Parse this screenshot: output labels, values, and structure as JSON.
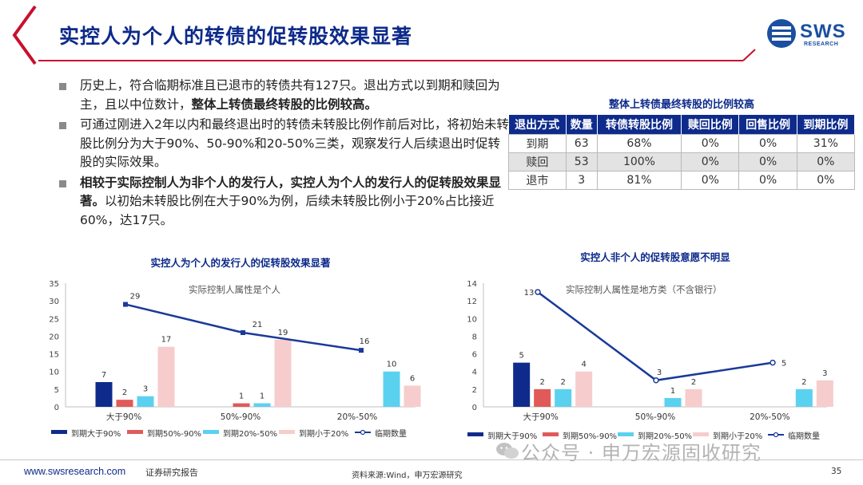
{
  "header": {
    "title": "实控人为个人的转债的促转股效果显著",
    "logo_text": "SWS",
    "logo_sub": "RESEARCH"
  },
  "bullets": [
    {
      "pre": "历史上，符合临期标准且已退市的转债共有127只。退出方式以到期和赎回为主，且以中位数计，",
      "bold": "整体上转债最终转股的比例较高。",
      "post": ""
    },
    {
      "pre": "可通过刚进入2年以内和最终退出时的转债未转股比例作前后对比，将初始未转股比例分为大于90%、50-90%和20-50%三类，观察发行人后续退出时促转股的实际效果。",
      "bold": "",
      "post": ""
    },
    {
      "pre": "",
      "bold": "相较于实际控制人为非个人的发行人，实控人为个人的发行人的促转股效果显著。",
      "post": "以初始未转股比例在大于90%为例，后续未转股比例小于20%占比接近60%，达17只。"
    }
  ],
  "table": {
    "title": "整体上转债最终转股的比例较高",
    "headers": [
      "退出方式",
      "数量",
      "转债转股比例",
      "赎回比例",
      "回售比例",
      "到期比例"
    ],
    "rows": [
      [
        "到期",
        "63",
        "68%",
        "0%",
        "0%",
        "31%"
      ],
      [
        "赎回",
        "53",
        "100%",
        "0%",
        "0%",
        "0%"
      ],
      [
        "退市",
        "3",
        "81%",
        "0%",
        "0%",
        "0%"
      ]
    ]
  },
  "chart_data": [
    {
      "type": "bar",
      "title": "实控人为个人的发行人的促转股效果显著",
      "annotation": "实际控制人属性是个人",
      "categories": [
        "大于90%",
        "50%-90%",
        "20%-50%"
      ],
      "ylim": [
        0,
        35
      ],
      "yticks": [
        0,
        5,
        10,
        15,
        20,
        25,
        30,
        35
      ],
      "series": [
        {
          "name": "到期大于90%",
          "values": [
            7,
            null,
            null
          ],
          "color": "#0e2b8c"
        },
        {
          "name": "到期50%-90%",
          "values": [
            2,
            1,
            null
          ],
          "color": "#e05a5a"
        },
        {
          "name": "到期20%-50%",
          "values": [
            3,
            1,
            10
          ],
          "color": "#5bd1f0"
        },
        {
          "name": "到期小于20%",
          "values": [
            17,
            19,
            6
          ],
          "color": "#f7cccc"
        }
      ],
      "line": {
        "name": "临期数量",
        "values": [
          29,
          21,
          16
        ],
        "color": "#1a3a9a"
      },
      "legend_position": "bottom"
    },
    {
      "type": "bar",
      "title": "实控人非个人的促转股意愿不明显",
      "annotation": "实际控制人属性是地方类（不含银行）",
      "categories": [
        "大于90%",
        "50%-90%",
        "20%-50%"
      ],
      "ylim": [
        0,
        14
      ],
      "yticks": [
        0,
        2,
        4,
        6,
        8,
        10,
        12,
        14
      ],
      "series": [
        {
          "name": "到期大于90%",
          "values": [
            5,
            null,
            null
          ],
          "color": "#0e2b8c"
        },
        {
          "name": "到期50%-90%",
          "values": [
            2,
            null,
            null
          ],
          "color": "#e05a5a"
        },
        {
          "name": "到期20%-50%",
          "values": [
            2,
            1,
            2
          ],
          "color": "#5bd1f0"
        },
        {
          "name": "到期小于20%",
          "values": [
            4,
            2,
            3
          ],
          "color": "#f7cccc"
        }
      ],
      "line": {
        "name": "临期数量",
        "values": [
          13,
          3,
          5
        ],
        "color": "#1a3a9a"
      },
      "legend_position": "bottom"
    }
  ],
  "footer": {
    "url": "www.swsresearch.com",
    "report": "证券研究报告",
    "source": "资料来源:Wind，申万宏源研究",
    "page": "35",
    "watermark": "公众号 · 申万宏源固收研究"
  },
  "colors": {
    "brand_red": "#c8102e",
    "brand_navy": "#0d2a8a"
  }
}
